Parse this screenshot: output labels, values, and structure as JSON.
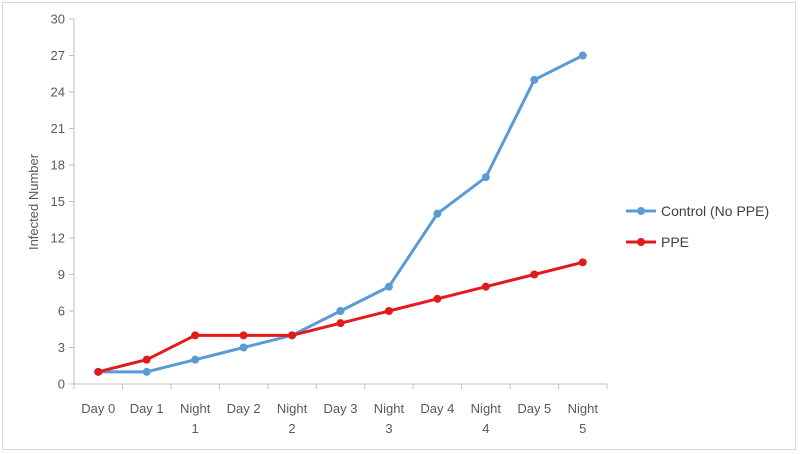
{
  "chart_data": {
    "type": "line",
    "title": "",
    "xlabel": "",
    "ylabel": "Infected Number",
    "categories": [
      [
        "Day 0"
      ],
      [
        "Day 1"
      ],
      [
        "Night",
        "1"
      ],
      [
        "Day 2"
      ],
      [
        "Night",
        "2"
      ],
      [
        "Day 3"
      ],
      [
        "Night",
        "3"
      ],
      [
        "Day 4"
      ],
      [
        "Night",
        "4"
      ],
      [
        "Day 5"
      ],
      [
        "Night",
        "5"
      ]
    ],
    "ylim": [
      0,
      30
    ],
    "yticks": [
      0,
      3,
      6,
      9,
      12,
      15,
      18,
      21,
      24,
      27,
      30
    ],
    "grid": false,
    "legend_position": "right",
    "series": [
      {
        "name": "Control (No PPE)",
        "color": "#5b9bd5",
        "values": [
          1,
          1,
          2,
          3,
          4,
          6,
          8,
          14,
          17,
          25,
          27
        ]
      },
      {
        "name": "PPE",
        "color": "#e31a1c",
        "values": [
          1,
          2,
          4,
          4,
          4,
          5,
          6,
          7,
          8,
          9,
          10
        ]
      }
    ]
  }
}
